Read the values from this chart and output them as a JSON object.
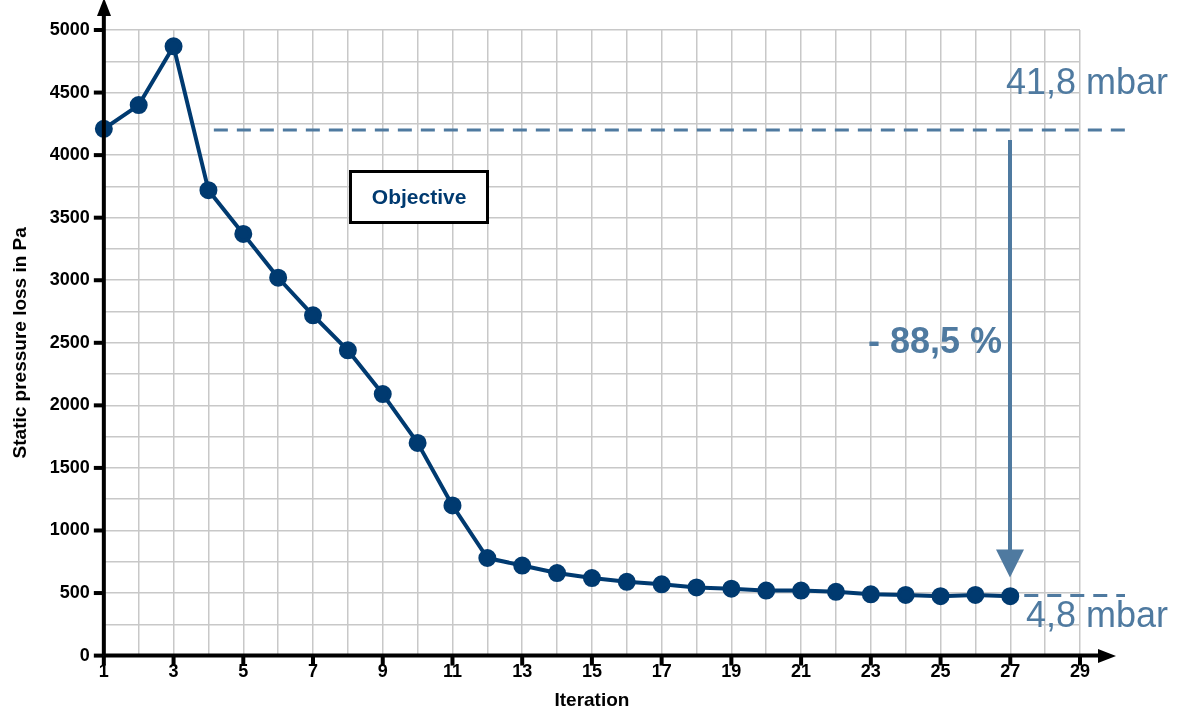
{
  "chart_data": {
    "type": "line",
    "xlabel": "Iteration",
    "ylabel": "Static pressure loss in Pa",
    "series": [
      {
        "color": "#003a70",
        "x": [
          1,
          2,
          3,
          4,
          5,
          6,
          7,
          8,
          9,
          10,
          11,
          12,
          13,
          14,
          15,
          16,
          17,
          18,
          19,
          20,
          21,
          22,
          23,
          24,
          25,
          26,
          27
        ],
        "values": [
          4210,
          4400,
          4870,
          3720,
          3370,
          3020,
          2720,
          2440,
          2090,
          1700,
          1200,
          780,
          720,
          660,
          620,
          590,
          570,
          545,
          535,
          520,
          520,
          510,
          490,
          485,
          475,
          485,
          475
        ]
      }
    ],
    "xlim": [
      1,
      29
    ],
    "xticks": [
      1,
      {
        "value": 2,
        "label": null
      },
      3,
      {
        "value": 4,
        "label": null
      },
      5,
      {
        "value": 6,
        "label": null
      },
      7,
      {
        "value": 8,
        "label": null
      },
      9,
      {
        "value": 10,
        "label": null
      },
      11,
      {
        "value": 12,
        "label": null
      },
      13,
      {
        "value": 14,
        "label": null
      },
      15,
      {
        "value": 16,
        "label": null
      },
      17,
      {
        "value": 18,
        "label": null
      },
      19,
      {
        "value": 20,
        "label": null
      },
      21,
      {
        "value": 22,
        "label": null
      },
      23,
      {
        "value": 24,
        "label": null
      },
      25,
      {
        "value": 26,
        "label": null
      },
      27,
      {
        "value": 28,
        "label": null
      },
      29
    ],
    "ylim": [
      0,
      5000
    ],
    "yticks": [
      0,
      {
        "value": 250,
        "label": null
      },
      500,
      {
        "value": 750,
        "label": null
      },
      1000,
      {
        "value": 1250,
        "label": null
      },
      1500,
      {
        "value": 1750,
        "label": null
      },
      2000,
      {
        "value": 2250,
        "label": null
      },
      2500,
      {
        "value": 2750,
        "label": null
      },
      3000,
      {
        "value": 3250,
        "label": null
      },
      3500,
      {
        "value": 3750,
        "label": null
      },
      4000,
      {
        "value": 4250,
        "label": null
      },
      4500,
      {
        "value": 4750,
        "label": null
      },
      5000
    ],
    "ref_lines": [
      {
        "axis": "y",
        "value": 4200,
        "label": "41,8 mbar",
        "color": "#4f7aa0",
        "line_style": "dashed"
      },
      {
        "axis": "y",
        "value": 480,
        "label": "4,8 mbar",
        "color": "#4f7aa0",
        "line_style": "dashed"
      }
    ],
    "annotations": [
      "Objective",
      "- 88,5 %"
    ],
    "grid": true,
    "legend": false,
    "marker": "circle",
    "line_style": "solid"
  }
}
